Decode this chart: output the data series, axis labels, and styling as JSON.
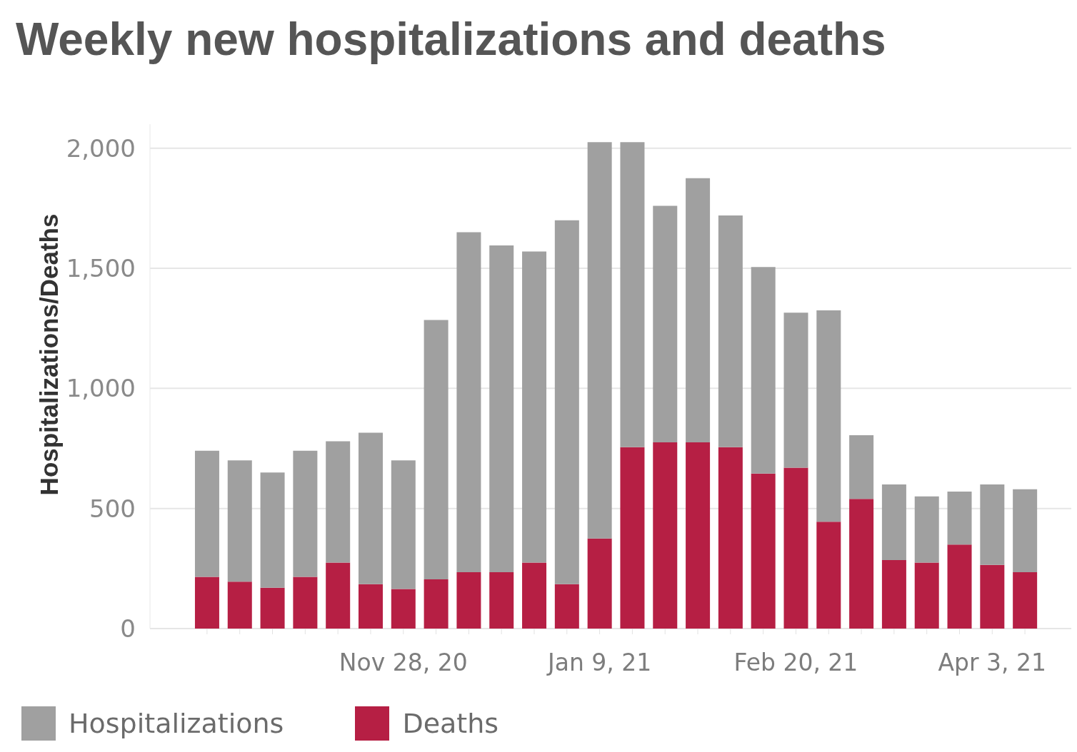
{
  "chart_data": {
    "type": "bar",
    "title": "Weekly new hospitalizations and deaths",
    "ylabel": "Hospitalizations/Deaths",
    "categories": [
      null,
      null,
      null,
      null,
      null,
      null,
      "Nov 28, 20",
      null,
      null,
      null,
      null,
      null,
      "Jan 9, 21",
      null,
      null,
      null,
      null,
      null,
      "Feb 20, 21",
      null,
      null,
      null,
      null,
      null,
      "Apr 3, 21",
      null
    ],
    "series": [
      {
        "name": "Deaths",
        "color": "#b61f44",
        "values": [
          215,
          195,
          170,
          215,
          275,
          185,
          165,
          205,
          235,
          235,
          275,
          185,
          375,
          755,
          775,
          775,
          755,
          645,
          670,
          445,
          540,
          285,
          275,
          350,
          265,
          235
        ]
      },
      {
        "name": "Hospitalizations",
        "color": "#a0a0a0",
        "values": [
          525,
          505,
          480,
          525,
          505,
          630,
          535,
          1080,
          1415,
          1360,
          1295,
          1515,
          1650,
          1270,
          985,
          1100,
          965,
          860,
          645,
          880,
          265,
          315,
          275,
          220,
          335,
          345
        ]
      }
    ],
    "stacked": true,
    "ylim": [
      0,
      2100
    ],
    "yticks": [
      0,
      500,
      {
        "value": 1000,
        "label": "1,000"
      },
      {
        "value": 1500,
        "label": "1,500"
      },
      {
        "value": 2000,
        "label": "2,000"
      }
    ],
    "grid": "y",
    "legend": "bottom left"
  }
}
